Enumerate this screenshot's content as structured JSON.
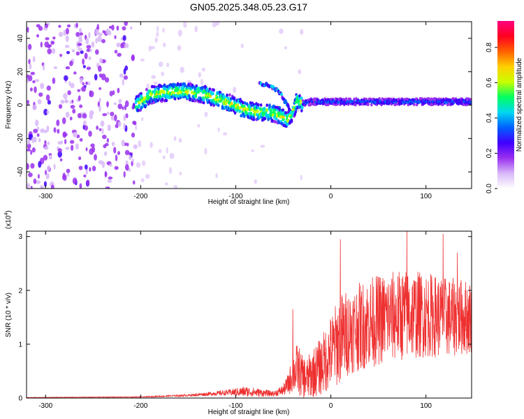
{
  "title": "GN05.2025.348.05.23.G17",
  "chart_data": [
    {
      "type": "heatmap",
      "name": "spectrogram",
      "xlabel": "Height of straight line (km)",
      "ylabel": "Frequency (Hz)",
      "xlim": [
        -320,
        148
      ],
      "ylim": [
        -50,
        50
      ],
      "xticks": [
        "-300",
        "-200",
        "-100",
        "0",
        "100"
      ],
      "xtick_values": [
        -300,
        -200,
        -100,
        0,
        100
      ],
      "yticks": [
        "-40",
        "-20",
        "0",
        "20",
        "40"
      ],
      "ytick_values": [
        -40,
        -20,
        0,
        20,
        40
      ],
      "colorbar": {
        "label": "Normalized spectral amplitude",
        "range": [
          0,
          0.95
        ],
        "ticks": [
          "0.0",
          "0.2",
          "0.4",
          "0.6",
          "0.8"
        ],
        "tick_values": [
          0.0,
          0.2,
          0.4,
          0.6,
          0.8
        ],
        "colormap": [
          "#ffffff",
          "#d8b8f8",
          "#9a30f0",
          "#4000ff",
          "#0060ff",
          "#00d8f0",
          "#00ff60",
          "#c8ff00",
          "#ffd000",
          "#ff6000",
          "#ff0020",
          "#ff0080"
        ]
      },
      "ridge_x": [
        -205,
        -190,
        -170,
        -150,
        -130,
        -115,
        -100,
        -90,
        -80,
        -70,
        -60,
        -50,
        -45,
        -40,
        -35,
        -30,
        -20,
        0,
        50,
        100,
        148
      ],
      "ridge_y": [
        0,
        6,
        8,
        8,
        6,
        3,
        0,
        -3,
        -4,
        -4,
        -5,
        -7,
        -9,
        -4,
        3,
        1,
        2,
        2,
        2,
        2,
        2
      ],
      "branch_x": [
        -75,
        -68,
        -60,
        -55,
        -50,
        -45,
        -42
      ],
      "branch_y": [
        13,
        12,
        10,
        8,
        4,
        -1,
        -5
      ]
    },
    {
      "type": "line",
      "name": "snr",
      "xlabel": "Height of straight line (km)",
      "ylabel": "SNR (10 * v/v)",
      "multiplier": "(x10",
      "multiplier_exp": "4",
      "multiplier_close": ")",
      "xlim": [
        -320,
        148
      ],
      "ylim": [
        0,
        3.1
      ],
      "xticks": [
        "-300",
        "-200",
        "-100",
        "0",
        "100"
      ],
      "xtick_values": [
        -300,
        -200,
        -100,
        0,
        100
      ],
      "yticks": [
        "0",
        "1",
        "2",
        "3"
      ],
      "ytick_values": [
        0,
        1,
        2,
        3
      ],
      "color": "#ee3030",
      "envelope_x": [
        -320,
        -200,
        -150,
        -110,
        -90,
        -60,
        -50,
        -45,
        -40,
        -35,
        -30,
        -25,
        -20,
        -10,
        0,
        10,
        20,
        40,
        60,
        80,
        100,
        120,
        148
      ],
      "envelope_base": [
        0.01,
        0.02,
        0.05,
        0.1,
        0.12,
        0.08,
        0.15,
        0.25,
        0.45,
        0.55,
        0.4,
        0.35,
        0.45,
        0.6,
        0.85,
        1.1,
        1.25,
        1.4,
        1.5,
        1.55,
        1.55,
        1.5,
        1.5
      ],
      "envelope_amp": [
        0.004,
        0.008,
        0.02,
        0.05,
        0.1,
        0.05,
        0.1,
        0.2,
        0.35,
        0.5,
        0.4,
        0.4,
        0.45,
        0.55,
        0.7,
        0.85,
        0.8,
        0.85,
        0.85,
        0.85,
        0.8,
        0.75,
        0.7
      ],
      "peaks": [
        [
          -40,
          1.65
        ],
        [
          10,
          2.95
        ],
        [
          80,
          3.1
        ],
        [
          118,
          3.05
        ],
        [
          133,
          2.7
        ]
      ]
    }
  ]
}
